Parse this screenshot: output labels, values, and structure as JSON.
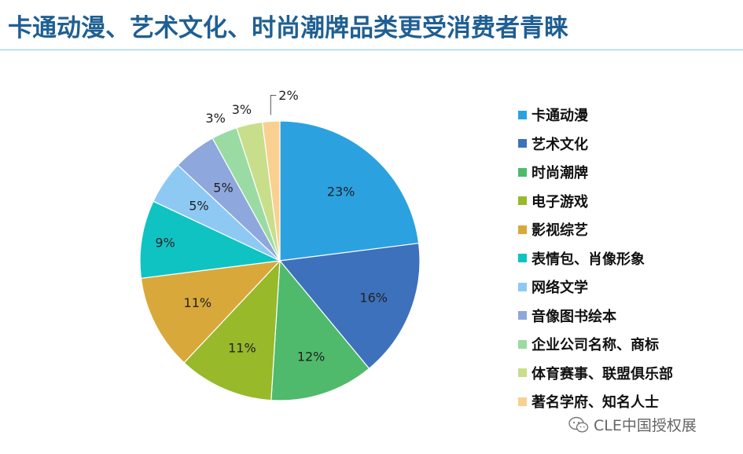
{
  "header": {
    "title": "卡通动漫、艺术文化、时尚潮牌品类更受消费者青睐"
  },
  "chart_data": {
    "type": "pie",
    "title": "",
    "labels": [
      "卡通动漫",
      "艺术文化",
      "时尚潮牌",
      "电子游戏",
      "影视综艺",
      "表情包、肖像形象",
      "网络文学",
      "音像图书绘本",
      "企业公司名称、商标",
      "体育赛事、联盟俱乐部",
      "著名学府、知名人士"
    ],
    "values": [
      23,
      16,
      12,
      11,
      11,
      9,
      5,
      5,
      3,
      3,
      2
    ],
    "data_labels": [
      "23%",
      "16%",
      "12%",
      "11%",
      "11%",
      "9%",
      "5%",
      "5%",
      "3%",
      "3%",
      "2%"
    ],
    "colors": [
      "#2ca1e0",
      "#3d71bb",
      "#4fba6b",
      "#98b92a",
      "#d9a83b",
      "#10c3c3",
      "#8ec9f4",
      "#8ea7dc",
      "#9adba4",
      "#c9de8a",
      "#f9d08f"
    ],
    "legend_position": "right"
  },
  "watermark": {
    "text": "CLE中国授权展",
    "icon": "wechat-icon"
  }
}
